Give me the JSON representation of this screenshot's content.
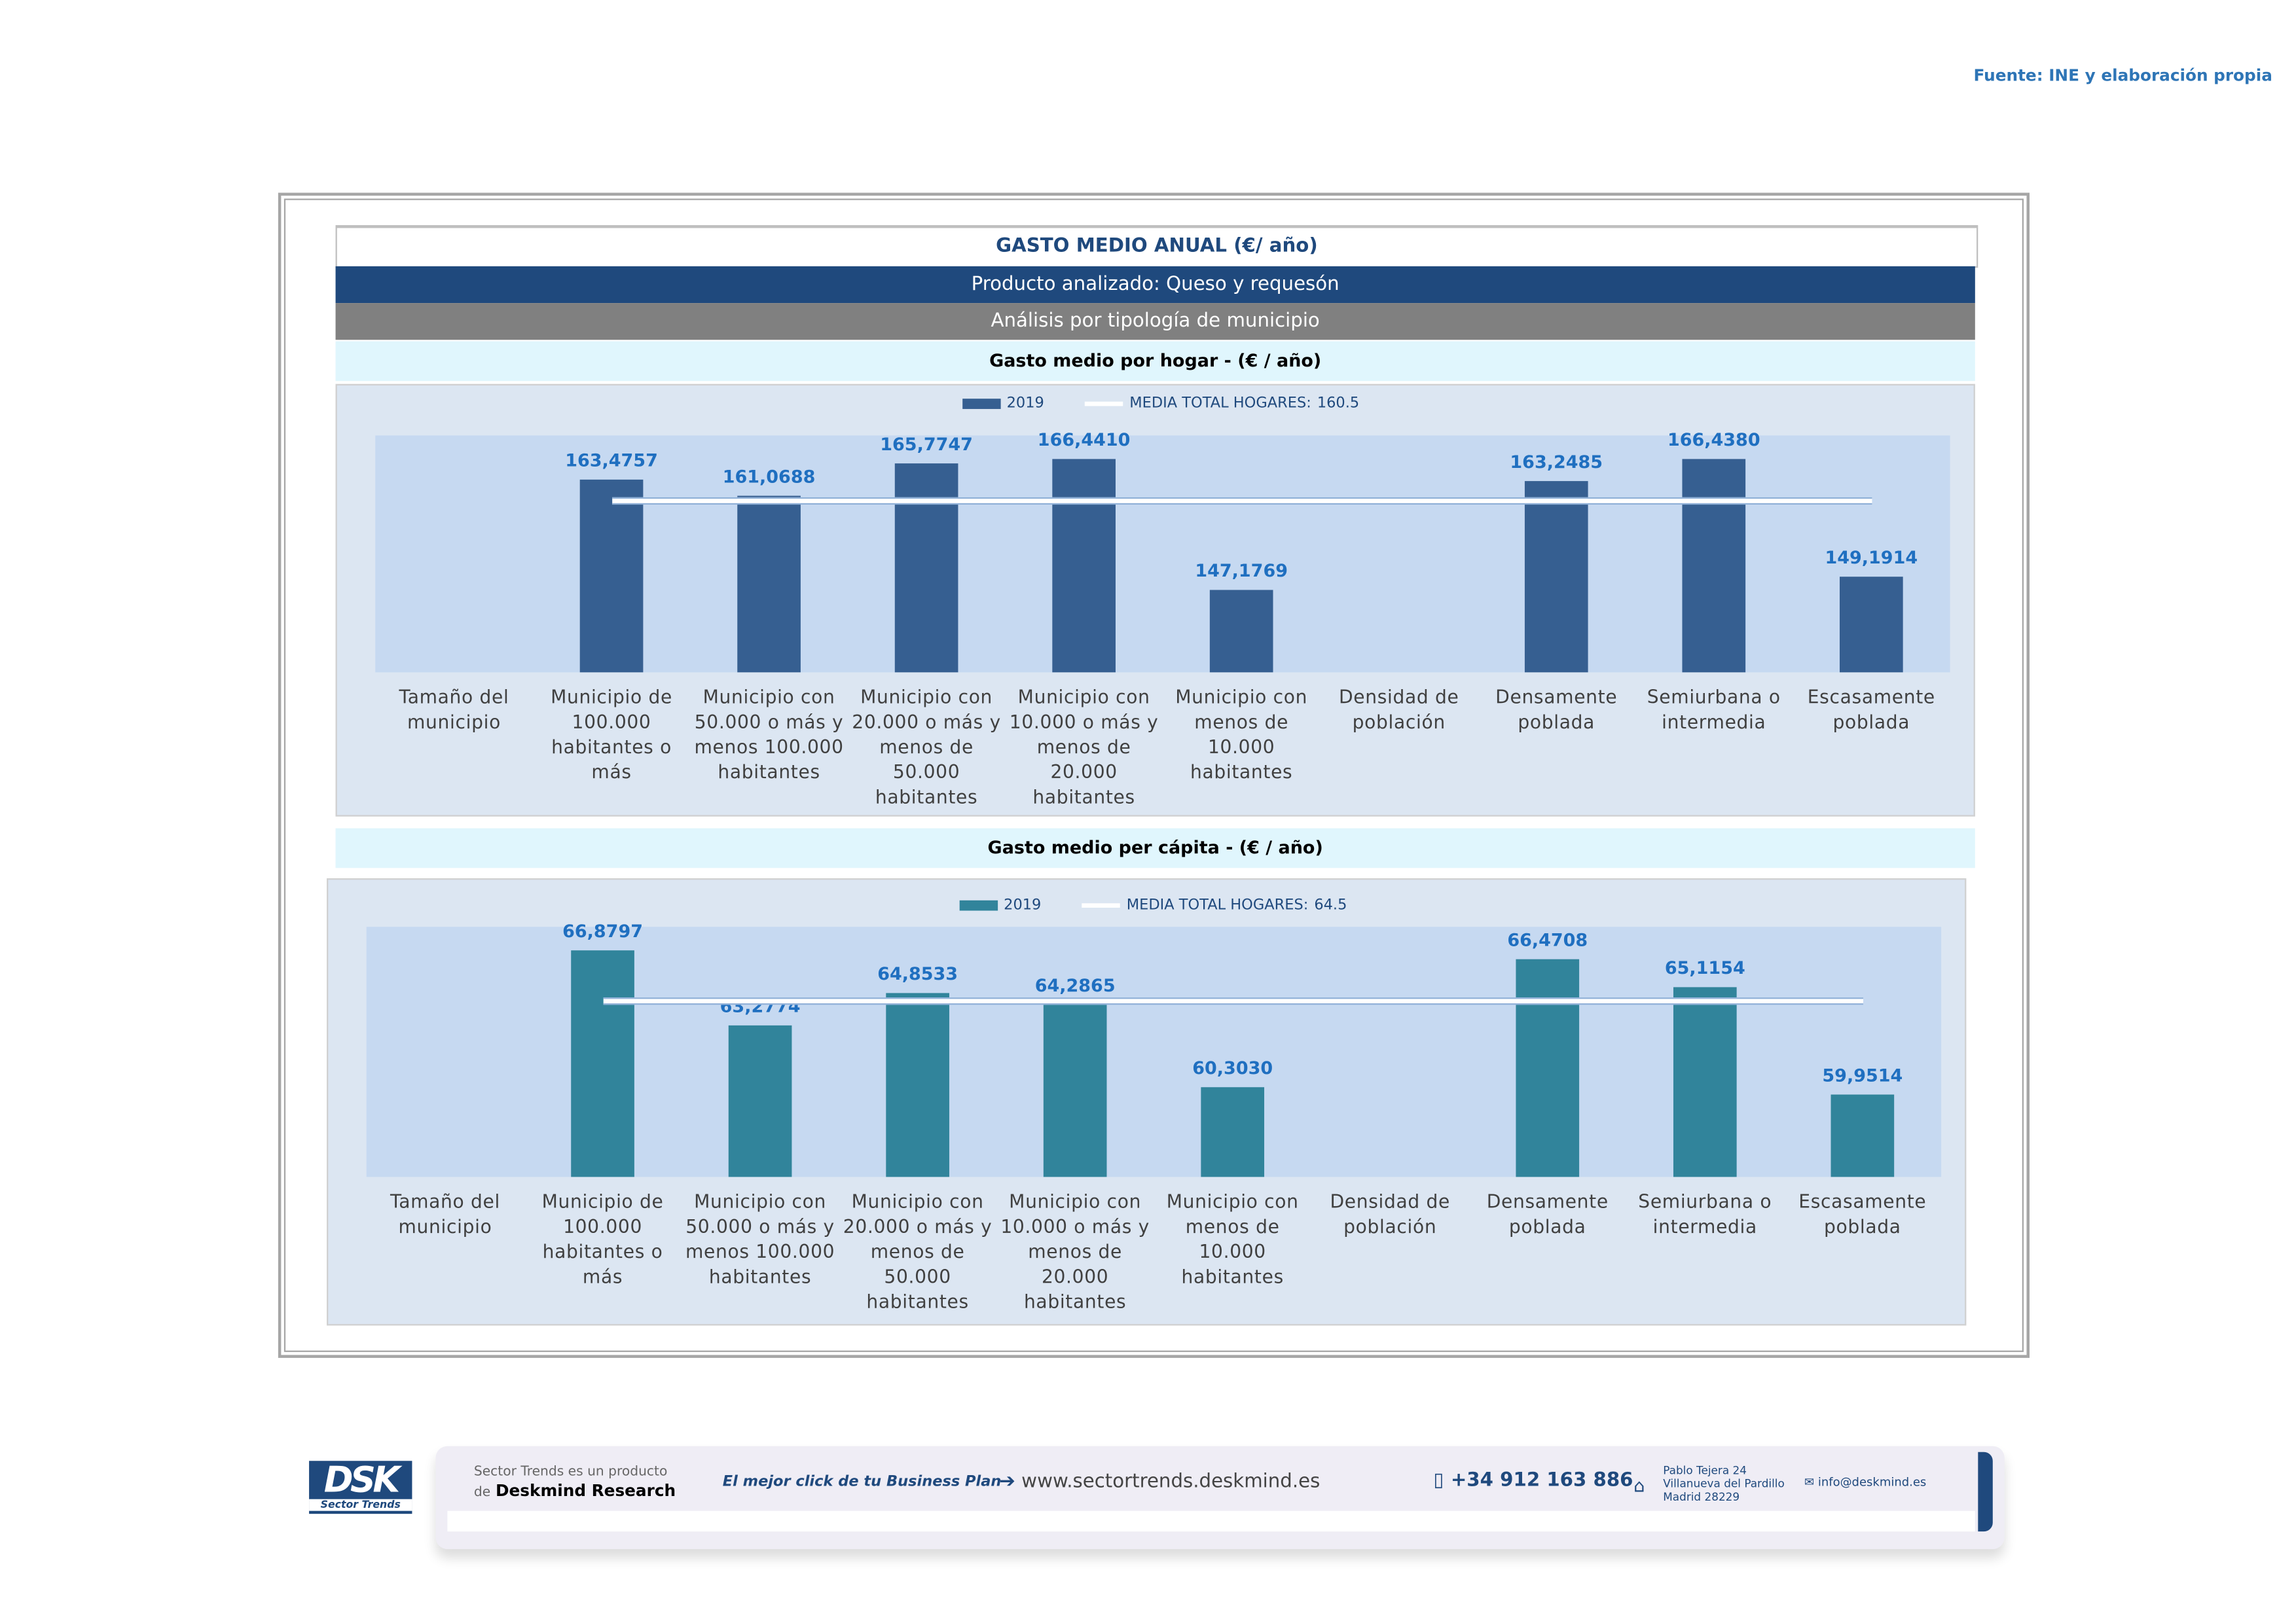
{
  "source": "Fuente: INE y elaboración propia",
  "header": {
    "title": "GASTO MEDIO ANUAL (€/ año)",
    "product": "Producto analizado: Queso y requesón",
    "analysis": "Análisis por tipología de municipio"
  },
  "colors": {
    "bar1": "#365f91",
    "bar2": "#31849b",
    "navy": "#1f497d",
    "label": "#1f6fc0"
  },
  "chart_data": [
    {
      "type": "bar",
      "title": "Gasto medio por hogar -  (€ / año)",
      "categories": [
        "Tamaño del\nmunicipio",
        "Municipio de\n100.000\nhabitantes o más",
        "Municipio con\n50.000 o más y\nmenos 100.000\nhabitantes",
        "Municipio con\n20.000 o más y\nmenos de 50.000\nhabitantes",
        "Municipio con\n10.000 o más y\nmenos de 20.000\nhabitantes",
        "Municipio con\nmenos de 10.000\nhabitantes",
        "Densidad de\npoblación",
        "Densamente\npoblada",
        "Semiurbana o\nintermedia",
        "Escasamente\npoblada"
      ],
      "values": [
        null,
        163.4757,
        161.0688,
        165.7747,
        166.441,
        147.1769,
        null,
        163.2485,
        166.438,
        149.1914
      ],
      "value_labels": [
        "",
        "163,4757",
        "161,0688",
        "165,7747",
        "166,4410",
        "147,1769",
        "",
        "163,2485",
        "166,4380",
        "149,1914"
      ],
      "legend": {
        "series": "2019",
        "mean_label": "MEDIA TOTAL  HOGARES:",
        "mean_value": "160.5"
      },
      "mean": 160.5,
      "ylim": [
        135,
        170
      ],
      "legend_position": "top-center"
    },
    {
      "type": "bar",
      "title": "Gasto medio per cápita -  (€ / año)",
      "categories": [
        "Tamaño del\nmunicipio",
        "Municipio de\n100.000\nhabitantes o más",
        "Municipio con\n50.000 o más y\nmenos 100.000\nhabitantes",
        "Municipio con\n20.000 o más y\nmenos de 50.000\nhabitantes",
        "Municipio con\n10.000 o más y\nmenos de 20.000\nhabitantes",
        "Municipio con\nmenos de 10.000\nhabitantes",
        "Densidad de\npoblación",
        "Densamente\npoblada",
        "Semiurbana o\nintermedia",
        "Escasamente\npoblada"
      ],
      "values": [
        null,
        66.8797,
        63.2774,
        64.8533,
        64.2865,
        60.303,
        null,
        66.4708,
        65.1154,
        59.9514
      ],
      "value_labels": [
        "",
        "66,8797",
        "63,2774",
        "64,8533",
        "64,2865",
        "60,3030",
        "",
        "66,4708",
        "65,1154",
        "59,9514"
      ],
      "legend": {
        "series": "2019",
        "mean_label": "MEDIA TOTAL  HOGARES:",
        "mean_value": "64.5"
      },
      "mean": 64.5,
      "ylim": [
        56,
        68
      ],
      "legend_position": "top-center"
    }
  ],
  "footer": {
    "logo": "DSK",
    "logo_sub": "Sector Trends",
    "product_line1": "Sector Trends es un producto",
    "product_line2_prefix": "de",
    "product_line2_brand": "Deskmind Research",
    "slogan": "El mejor click de tu Business Plan",
    "website": "www.sectortrends.deskmind.es",
    "phone": "+34 912 163 886",
    "address1": "Pablo Tejera 24",
    "address2": "Villanueva del Pardillo",
    "address3": "Madrid 28229",
    "email": "info@deskmind.es"
  }
}
